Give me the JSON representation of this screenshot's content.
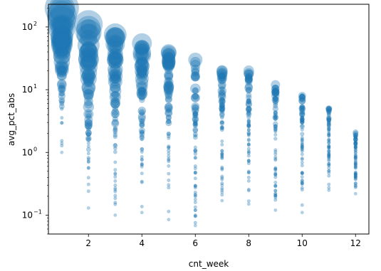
{
  "chart_data": {
    "type": "scatter",
    "title": "",
    "xlabel": "cnt_week",
    "ylabel": "avg_pct_abs",
    "x_scale": "linear",
    "y_scale": "log",
    "xlim": [
      0.5,
      12.5
    ],
    "ylim": [
      0.05,
      230
    ],
    "x_ticks": [
      2,
      4,
      6,
      8,
      10,
      12
    ],
    "x_tick_labels": [
      "2",
      "4",
      "6",
      "8",
      "10",
      "12"
    ],
    "y_ticks": [
      0.1,
      1,
      10,
      100
    ],
    "y_tick_labels": [
      "10",
      "10",
      "10",
      "10"
    ],
    "y_tick_exponents": [
      "−1",
      "0",
      "1",
      "2"
    ],
    "grid": false,
    "legend": "none",
    "marker_color": "#1f77b4",
    "marker_alpha": 0.35,
    "columns": [
      {
        "x": 1,
        "min": 1.0,
        "max": 200,
        "max_bubble": 48
      },
      {
        "x": 2,
        "min": 0.13,
        "max": 110,
        "max_bubble": 40
      },
      {
        "x": 3,
        "min": 0.1,
        "max": 75,
        "max_bubble": 32
      },
      {
        "x": 4,
        "min": 0.11,
        "max": 55,
        "max_bubble": 28
      },
      {
        "x": 5,
        "min": 0.085,
        "max": 40,
        "max_bubble": 22
      },
      {
        "x": 6,
        "min": 0.068,
        "max": 30,
        "max_bubble": 20
      },
      {
        "x": 7,
        "min": 0.17,
        "max": 20,
        "max_bubble": 16
      },
      {
        "x": 8,
        "min": 0.15,
        "max": 20,
        "max_bubble": 15
      },
      {
        "x": 9,
        "min": 0.12,
        "max": 12,
        "max_bubble": 13
      },
      {
        "x": 10,
        "min": 0.11,
        "max": 8,
        "max_bubble": 11
      },
      {
        "x": 11,
        "min": 0.25,
        "max": 5,
        "max_bubble": 9
      },
      {
        "x": 12,
        "min": 0.22,
        "max": 2.1,
        "max_bubble": 8
      }
    ]
  }
}
